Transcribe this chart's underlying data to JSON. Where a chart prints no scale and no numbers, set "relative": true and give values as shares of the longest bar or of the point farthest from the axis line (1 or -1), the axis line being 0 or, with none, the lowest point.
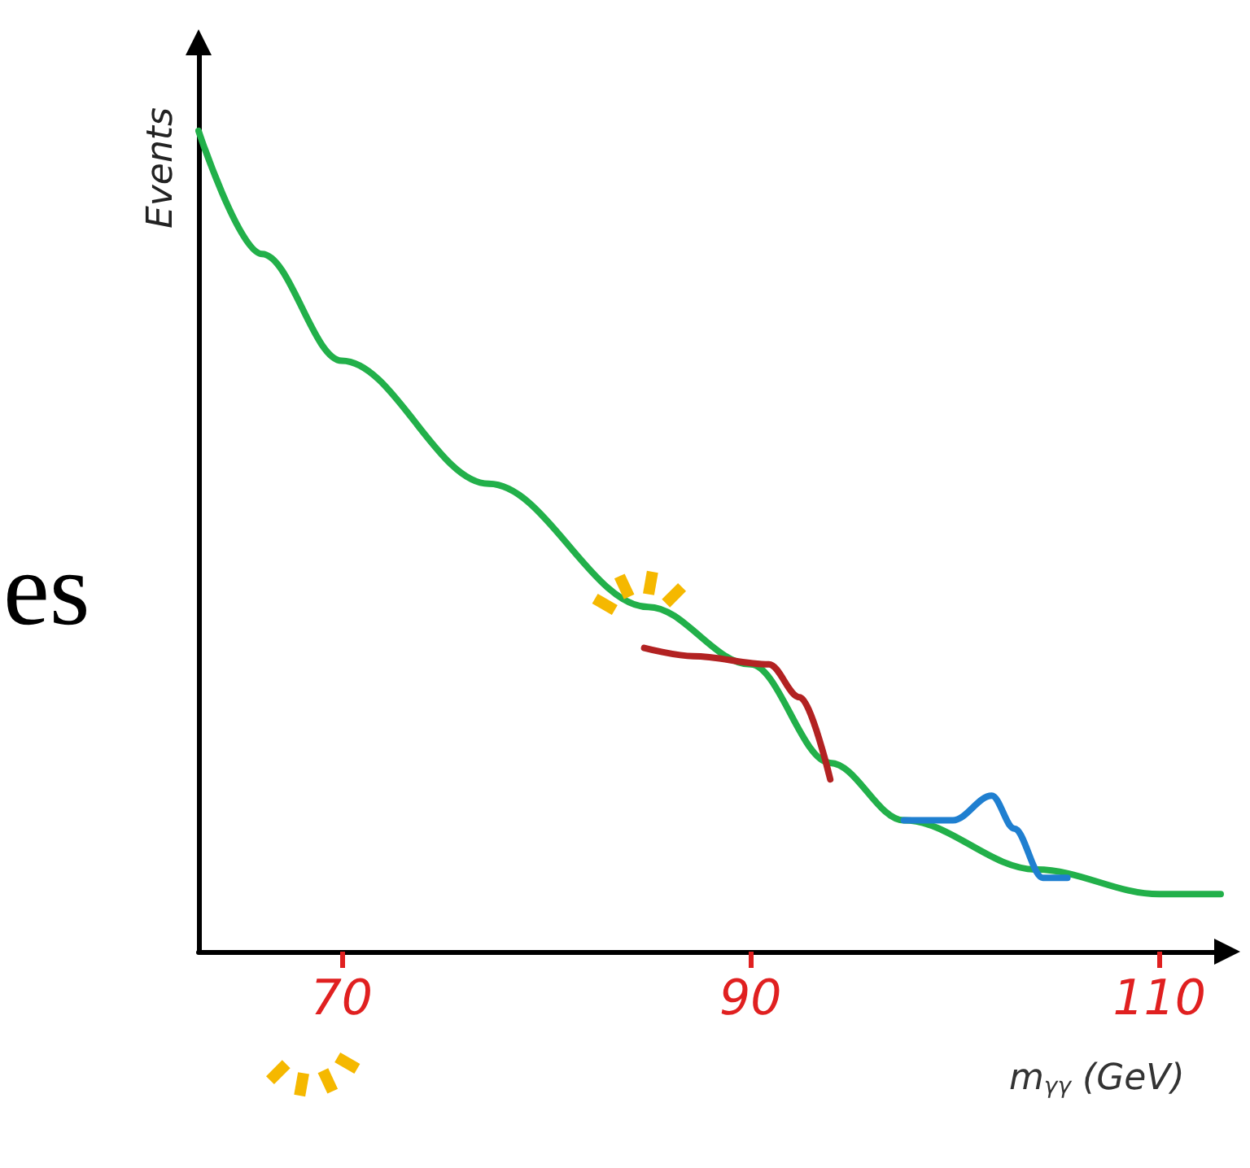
{
  "chart_data": {
    "type": "line",
    "relative": true,
    "xlabel": "m$_{γγ}$ (GeV)",
    "ylabel": "Events",
    "annotations": [
      "es"
    ],
    "xlim": [
      63,
      113
    ],
    "xticks": [
      70,
      90,
      110
    ],
    "marker": "none",
    "line_style": "solid",
    "grid": false,
    "series": [
      {
        "color": "#22b04a",
        "x": [
          63,
          66.1,
          70,
          77.2,
          85,
          90,
          93.9,
          97.5,
          104,
          110,
          113
        ],
        "values": [
          1,
          0.85,
          0.72,
          0.57,
          0.42,
          0.35,
          0.23,
          0.16,
          0.1,
          0.07,
          0.07
        ]
      },
      {
        "color": "#b22222",
        "x": [
          84.8,
          87.2,
          90.9,
          92.4,
          93.9
        ],
        "values": [
          0.37,
          0.36,
          0.35,
          0.31,
          0.21
        ]
      },
      {
        "color": "#1f7fd0",
        "x": [
          97.5,
          99.9,
          101.8,
          102.9,
          104.3,
          105.5
        ],
        "values": [
          0.16,
          0.16,
          0.19,
          0.15,
          0.09,
          0.09
        ]
      }
    ]
  }
}
